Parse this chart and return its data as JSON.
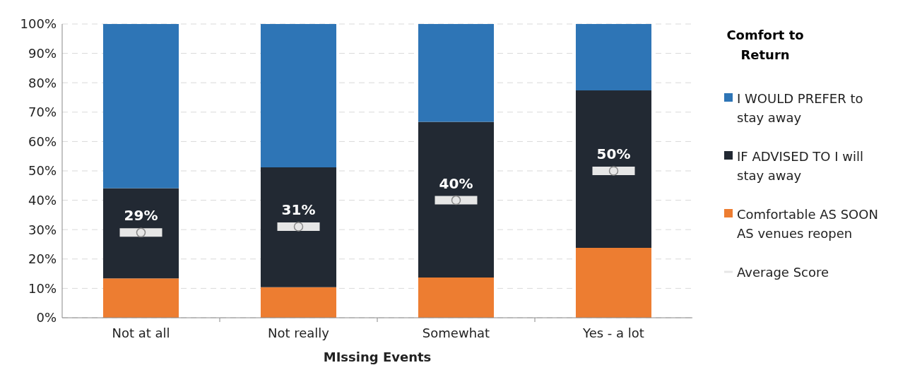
{
  "chart_data": {
    "type": "bar",
    "stacked": true,
    "xlabel": "MIssing Events",
    "legend_title": "Comfort to Return",
    "categories": [
      "Not at all",
      "Not really",
      "Somewhat",
      "Yes - a lot"
    ],
    "series": [
      {
        "name": "Comfortable AS SOON AS venues reopen",
        "color": "#ed7d31",
        "values": [
          13.4,
          10.4,
          13.7,
          23.8
        ]
      },
      {
        "name": "IF ADVISED TO I will stay away",
        "color": "#222933",
        "values": [
          30.7,
          40.8,
          53,
          53.6
        ]
      },
      {
        "name": "I WOULD PREFER to stay away",
        "color": "#2e75b6",
        "values": [
          55.9,
          48.8,
          33.3,
          22.6
        ]
      },
      {
        "name": "Average Score",
        "type": "scatter",
        "color": "#e6e6e6",
        "x": [
          "Not at all",
          "Not really",
          "Somewhat",
          "Yes - a lot"
        ],
        "values": [
          29,
          31,
          40,
          50
        ],
        "value_labels": [
          "29%",
          "31%",
          "40%",
          "50%"
        ]
      }
    ],
    "ylim": [
      0,
      100
    ],
    "yticks": [
      {
        "value": 0,
        "label": "0%"
      },
      {
        "value": 10,
        "label": "10%"
      },
      {
        "value": 20,
        "label": "20%"
      },
      {
        "value": 30,
        "label": "30%"
      },
      {
        "value": 40,
        "label": "40%"
      },
      {
        "value": 50,
        "label": "50%"
      },
      {
        "value": 60,
        "label": "60%"
      },
      {
        "value": 70,
        "label": "70%"
      },
      {
        "value": 80,
        "label": "80%"
      },
      {
        "value": 90,
        "label": "90%"
      },
      {
        "value": 100,
        "label": "100%"
      }
    ],
    "grid": "y",
    "legend": "right"
  }
}
